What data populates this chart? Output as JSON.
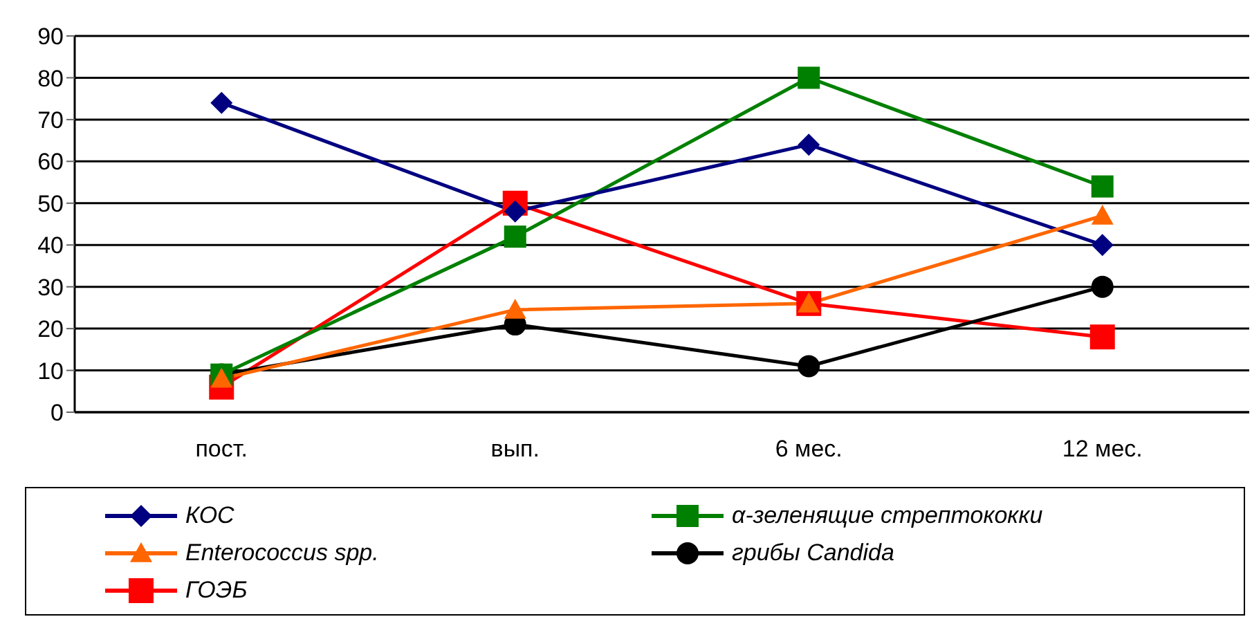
{
  "chart_data": {
    "type": "line",
    "categories": [
      "пост.",
      "вып.",
      "6 мес.",
      "12 мес."
    ],
    "series": [
      {
        "name": "КОС",
        "color": "#000080",
        "marker": "diamond",
        "values": [
          74,
          48,
          64,
          40
        ]
      },
      {
        "name": "α-зеленящие стрептококки",
        "color": "#008000",
        "marker": "square",
        "values": [
          9,
          42,
          80,
          54
        ]
      },
      {
        "name": "Enterococcus spp.",
        "color": "#ff6600",
        "marker": "triangle",
        "values": [
          8,
          24.5,
          26,
          47
        ]
      },
      {
        "name": "грибы Candida",
        "color": "#000000",
        "marker": "circle",
        "values": [
          9,
          21,
          11,
          30
        ]
      },
      {
        "name": "ГОЭБ",
        "color": "#ff0000",
        "marker": "square",
        "values": [
          6,
          50,
          26,
          18
        ]
      }
    ],
    "ylim": [
      0,
      90
    ],
    "yticks": [
      0,
      10,
      20,
      30,
      40,
      50,
      60,
      70,
      80,
      90
    ],
    "grid": "y",
    "legend": "bottom"
  }
}
